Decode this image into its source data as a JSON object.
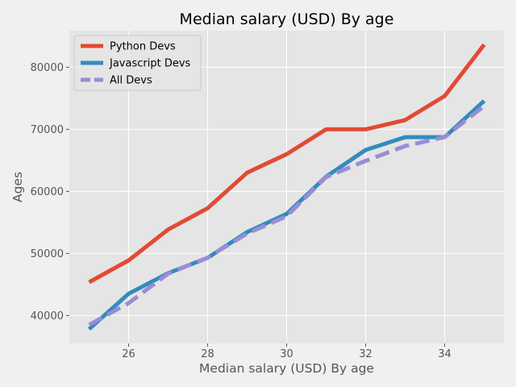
{
  "chart_data": {
    "type": "line",
    "title": "Median salary (USD) By age",
    "xlabel": "Median salary (USD) By age",
    "ylabel": "Ages",
    "x": [
      25,
      26,
      27,
      28,
      29,
      30,
      31,
      32,
      33,
      34,
      35
    ],
    "xlim": [
      24.5,
      35.5
    ],
    "ylim": [
      35500,
      85900
    ],
    "xticks": [
      26,
      28,
      30,
      32,
      34
    ],
    "yticks": [
      40000,
      50000,
      60000,
      70000,
      80000
    ],
    "grid": true,
    "legend_position": "top-left",
    "series": [
      {
        "name": "Python Devs",
        "color": "#e24a33",
        "style": "solid",
        "values": [
          45372,
          48876,
          53850,
          57287,
          63016,
          65998,
          70003,
          70000,
          71496,
          75370,
          83640
        ]
      },
      {
        "name": "Javascript Devs",
        "color": "#348abd",
        "style": "solid",
        "values": [
          37810,
          43515,
          46823,
          49293,
          53437,
          56373,
          62375,
          66674,
          68745,
          68746,
          74583
        ]
      },
      {
        "name": "All Devs",
        "color": "#988ed5",
        "style": "dashed",
        "values": [
          38496,
          42000,
          46752,
          49320,
          53200,
          56000,
          62316,
          64928,
          67317,
          68748,
          73752
        ]
      }
    ]
  }
}
